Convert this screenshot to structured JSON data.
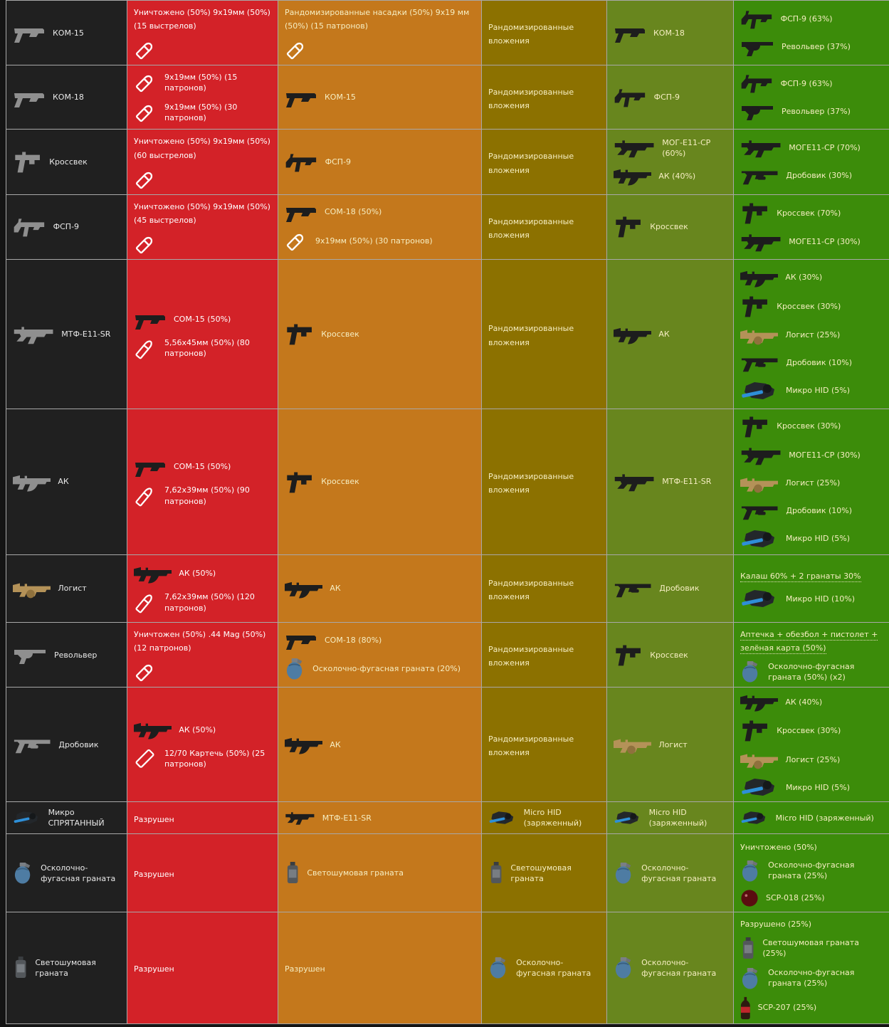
{
  "colors": {
    "item": "#202020",
    "red": "#d32228",
    "orange": "#c4781c",
    "olive": "#8c7100",
    "green1": "#68861e",
    "green2": "#3c8c0a",
    "grid": "#a8a8a8",
    "cream_text": "#f6eec2",
    "white_text": "#ffffff"
  },
  "rows": [
    {
      "cells": [
        {
          "bg": "item",
          "entries": [
            {
              "icon": "pistol-icon",
              "text": "КОМ-15"
            }
          ]
        },
        {
          "bg": "red",
          "entries": [
            {
              "text": "Уничтожено (50%) 9х19мм (50%) (15 выстрелов)"
            },
            {
              "icon": "pistol-ammo-icon"
            }
          ]
        },
        {
          "bg": "orange",
          "entries": [
            {
              "text": "Рандомизированные насадки (50%) 9х19 мм (50%) (15 патронов)"
            },
            {
              "icon": "pistol-ammo-icon"
            }
          ]
        },
        {
          "bg": "olive",
          "entries": [
            {
              "text": "Рандомизированные вложения"
            }
          ]
        },
        {
          "bg": "green1",
          "entries": [
            {
              "icon": "pistol-icon",
              "text": "КОМ-18",
              "link": true
            }
          ]
        },
        {
          "bg": "green2",
          "entries": [
            {
              "icon": "smg-icon",
              "text": "ФСП-9 (63%)",
              "link": true
            },
            {
              "icon": "revolver-icon",
              "text": "Револьвер (37%)",
              "link": true
            }
          ]
        }
      ]
    },
    {
      "cells": [
        {
          "bg": "item",
          "entries": [
            {
              "icon": "pistol-icon",
              "text": "КОМ-18"
            }
          ]
        },
        {
          "bg": "red",
          "entries": [
            {
              "icon": "pistol-ammo-icon",
              "text": "9х19мм (50%) (15 патронов)"
            },
            {
              "icon": "pistol-ammo-icon",
              "text": "9х19мм (50%) (30 патронов)"
            }
          ]
        },
        {
          "bg": "orange",
          "entries": [
            {
              "icon": "pistol-icon",
              "text": "КОМ-15",
              "link": true
            }
          ]
        },
        {
          "bg": "olive",
          "entries": [
            {
              "text": "Рандомизированные вложения"
            }
          ]
        },
        {
          "bg": "green1",
          "entries": [
            {
              "icon": "smg-icon",
              "text": "ФСП-9",
              "link": true
            }
          ]
        },
        {
          "bg": "green2",
          "entries": [
            {
              "icon": "smg-icon",
              "text": "ФСП-9 (63%)",
              "link": true
            },
            {
              "icon": "revolver-icon",
              "text": "Револьвер (37%)",
              "link": true
            }
          ]
        }
      ]
    },
    {
      "cells": [
        {
          "bg": "item",
          "entries": [
            {
              "icon": "vector-smg-icon",
              "text": "Кроссвек"
            }
          ]
        },
        {
          "bg": "red",
          "entries": [
            {
              "text": "Уничтожено (50%) 9х19мм (50%) (60 выстрелов)"
            },
            {
              "icon": "pistol-ammo-icon"
            }
          ]
        },
        {
          "bg": "orange",
          "entries": [
            {
              "icon": "smg-icon",
              "text": "ФСП-9",
              "link": true
            }
          ]
        },
        {
          "bg": "olive",
          "entries": [
            {
              "text": "Рандомизированные вложения"
            }
          ]
        },
        {
          "bg": "green1",
          "entries": [
            {
              "icon": "rifle-icon",
              "text": "МОГ-Е11-СР (60%)",
              "link": true
            },
            {
              "icon": "ak-icon",
              "text": "АК (40%)",
              "link": true
            }
          ]
        },
        {
          "bg": "green2",
          "entries": [
            {
              "icon": "rifle-icon",
              "text": "МОГЕ11-СР (70%)",
              "link": true
            },
            {
              "icon": "shotgun-icon",
              "text": "Дробовик (30%)",
              "link": true
            }
          ]
        }
      ]
    },
    {
      "cells": [
        {
          "bg": "item",
          "entries": [
            {
              "icon": "smg-icon",
              "text": "ФСП-9"
            }
          ]
        },
        {
          "bg": "red",
          "entries": [
            {
              "text": "Уничтожено (50%) 9х19мм (50%) (45 выстрелов)"
            },
            {
              "icon": "pistol-ammo-icon"
            }
          ]
        },
        {
          "bg": "orange",
          "entries": [
            {
              "icon": "pistol-icon",
              "text": "СОМ-18 (50%)",
              "link": true
            },
            {
              "icon": "pistol-ammo-icon",
              "text": "9х19мм (50%) (30 патронов)"
            }
          ]
        },
        {
          "bg": "olive",
          "entries": [
            {
              "text": "Рандомизированные вложения"
            }
          ]
        },
        {
          "bg": "green1",
          "entries": [
            {
              "icon": "vector-smg-icon",
              "text": "Кроссвек",
              "link": true
            }
          ]
        },
        {
          "bg": "green2",
          "entries": [
            {
              "icon": "vector-smg-icon",
              "text": "Кроссвек (70%)",
              "link": true
            },
            {
              "icon": "rifle-icon",
              "text": "МОГЕ11-СР (30%)",
              "link": true
            }
          ]
        }
      ]
    },
    {
      "cells": [
        {
          "bg": "item",
          "entries": [
            {
              "icon": "rifle-icon",
              "text": "МТФ-Е11-SR"
            }
          ]
        },
        {
          "bg": "red",
          "entries": [
            {
              "icon": "pistol-icon",
              "text": "СОМ-15 (50%)",
              "link": true
            },
            {
              "icon": "rifle-ammo-icon",
              "text": "5,56х45мм (50%) (80 патронов)"
            }
          ]
        },
        {
          "bg": "orange",
          "entries": [
            {
              "icon": "vector-smg-icon",
              "text": "Кроссвек",
              "link": true
            }
          ]
        },
        {
          "bg": "olive",
          "entries": [
            {
              "text": "Рандомизированные вложения"
            }
          ]
        },
        {
          "bg": "green1",
          "entries": [
            {
              "icon": "ak-icon",
              "text": "АК",
              "link": true
            }
          ]
        },
        {
          "bg": "green2",
          "entries": [
            {
              "icon": "ak-icon",
              "text": "АК (30%)",
              "link": true
            },
            {
              "icon": "vector-smg-icon",
              "text": "Кроссвек (30%)",
              "link": true
            },
            {
              "icon": "logicer-rifle-icon",
              "text": "Логист (25%)",
              "link": true
            },
            {
              "icon": "shotgun-icon",
              "text": "Дробовик (10%)",
              "link": true
            },
            {
              "icon": "micro-hid-icon",
              "text": "Микро HID (5%)",
              "link": true
            }
          ]
        }
      ]
    },
    {
      "cells": [
        {
          "bg": "item",
          "entries": [
            {
              "icon": "ak-icon",
              "text": "АК"
            }
          ]
        },
        {
          "bg": "red",
          "entries": [
            {
              "icon": "pistol-icon",
              "text": "СОМ-15 (50%)",
              "link": true
            },
            {
              "icon": "rifle-ammo-icon",
              "text": "7,62х39мм (50%) (90 патронов)"
            }
          ]
        },
        {
          "bg": "orange",
          "entries": [
            {
              "icon": "vector-smg-icon",
              "text": "Кроссвек",
              "link": true
            }
          ]
        },
        {
          "bg": "olive",
          "entries": [
            {
              "text": "Рандомизированные вложения"
            }
          ]
        },
        {
          "bg": "green1",
          "entries": [
            {
              "icon": "rifle-icon",
              "text": "МТФ-Е11-SR",
              "link": true
            }
          ]
        },
        {
          "bg": "green2",
          "entries": [
            {
              "icon": "vector-smg-icon",
              "text": "Кроссвек (30%)",
              "link": true
            },
            {
              "icon": "rifle-icon",
              "text": "МОГЕ11-СР (30%)",
              "link": true
            },
            {
              "icon": "logicer-rifle-icon",
              "text": "Логист (25%)",
              "link": true
            },
            {
              "icon": "shotgun-icon",
              "text": "Дробовик (10%)",
              "link": true
            },
            {
              "icon": "micro-hid-icon",
              "text": "Микро HID (5%)",
              "link": true
            }
          ]
        }
      ]
    },
    {
      "cells": [
        {
          "bg": "item",
          "entries": [
            {
              "icon": "logicer-rifle-icon",
              "text": "Логист"
            }
          ]
        },
        {
          "bg": "red",
          "entries": [
            {
              "icon": "ak-icon",
              "text": "АК (50%)",
              "link": true
            },
            {
              "icon": "rifle-ammo-icon",
              "text": "7,62х39мм (50%) (120 патронов)"
            }
          ]
        },
        {
          "bg": "orange",
          "entries": [
            {
              "icon": "ak-icon",
              "text": "АК",
              "link": true
            }
          ]
        },
        {
          "bg": "olive",
          "entries": [
            {
              "text": "Рандомизированные вложения"
            }
          ]
        },
        {
          "bg": "green1",
          "entries": [
            {
              "icon": "shotgun-icon",
              "text": "Дробовик",
              "link": true
            }
          ]
        },
        {
          "bg": "green2",
          "entries": [
            {
              "text": "Калаш 60% + 2 гранаты 30%",
              "underline": true
            },
            {
              "icon": "micro-hid-icon",
              "text": "Микро HID (10%)",
              "link": true
            }
          ]
        }
      ]
    },
    {
      "cells": [
        {
          "bg": "item",
          "entries": [
            {
              "icon": "revolver-icon",
              "text": "Револьвер"
            }
          ]
        },
        {
          "bg": "red",
          "entries": [
            {
              "text": "Уничтожен (50%) .44 Mag (50%) (12 патронов)"
            },
            {
              "icon": "pistol-ammo-icon"
            }
          ]
        },
        {
          "bg": "orange",
          "entries": [
            {
              "icon": "pistol-icon",
              "text": "СОМ-18 (80%)",
              "link": true
            },
            {
              "icon": "he-grenade-icon",
              "text": "Осколочно-фугасная граната (20%)",
              "link": true
            }
          ]
        },
        {
          "bg": "olive",
          "entries": [
            {
              "text": "Рандомизированные вложения"
            }
          ]
        },
        {
          "bg": "green1",
          "entries": [
            {
              "icon": "vector-smg-icon",
              "text": "Кроссвек",
              "link": true
            }
          ]
        },
        {
          "bg": "green2",
          "entries": [
            {
              "text": "Аптечка + обезбол + пистолет + зелёная карта (50%)",
              "underline": true
            },
            {
              "icon": "he-grenade-icon",
              "text": "Осколочно-фугасная граната (50%) (х2)",
              "link": true
            }
          ]
        }
      ]
    },
    {
      "cells": [
        {
          "bg": "item",
          "entries": [
            {
              "icon": "shotgun-icon",
              "text": "Дробовик"
            }
          ]
        },
        {
          "bg": "red",
          "entries": [
            {
              "icon": "ak-icon",
              "text": "АК (50%)",
              "link": true
            },
            {
              "icon": "shell-ammo-icon",
              "text": "12/70 Картечь (50%) (25 патронов)"
            }
          ]
        },
        {
          "bg": "orange",
          "entries": [
            {
              "icon": "ak-icon",
              "text": "АК",
              "link": true
            }
          ]
        },
        {
          "bg": "olive",
          "entries": [
            {
              "text": "Рандомизированные вложения"
            }
          ]
        },
        {
          "bg": "green1",
          "entries": [
            {
              "icon": "logicer-rifle-icon",
              "text": "Логист",
              "link": true
            }
          ]
        },
        {
          "bg": "green2",
          "entries": [
            {
              "icon": "ak-icon",
              "text": "АК (40%)",
              "link": true
            },
            {
              "icon": "vector-smg-icon",
              "text": "Кроссвек (30%)",
              "link": true
            },
            {
              "icon": "logicer-rifle-icon",
              "text": "Логист (25%)",
              "link": true
            },
            {
              "icon": "micro-hid-icon",
              "text": "Микро HID (5%)",
              "link": true
            }
          ]
        }
      ]
    },
    {
      "cells": [
        {
          "bg": "item",
          "entries": [
            {
              "icon": "micro-hid-icon",
              "text": "Микро СПРЯТАННЫЙ"
            }
          ]
        },
        {
          "bg": "red",
          "entries": [
            {
              "text": "Разрушен"
            }
          ]
        },
        {
          "bg": "orange",
          "entries": [
            {
              "icon": "rifle-icon",
              "text": "МТФ-Е11-SR",
              "link": true
            }
          ]
        },
        {
          "bg": "olive",
          "entries": [
            {
              "icon": "micro-hid-icon",
              "text": "Micro HID (заряженный)",
              "link": true
            }
          ]
        },
        {
          "bg": "green1",
          "entries": [
            {
              "icon": "micro-hid-icon",
              "text": "Micro HID (заряженный)",
              "link": true
            }
          ]
        },
        {
          "bg": "green2",
          "entries": [
            {
              "icon": "micro-hid-icon",
              "text": "Micro HID (заряженный)",
              "link": true
            }
          ]
        }
      ]
    },
    {
      "cells": [
        {
          "bg": "item",
          "entries": [
            {
              "icon": "he-grenade-icon",
              "text": "Осколочно-фугасная граната"
            }
          ]
        },
        {
          "bg": "red",
          "entries": [
            {
              "text": "Разрушен"
            }
          ]
        },
        {
          "bg": "orange",
          "entries": [
            {
              "icon": "flashbang-icon",
              "text": "Светошумовая граната",
              "link": true
            }
          ]
        },
        {
          "bg": "olive",
          "entries": [
            {
              "icon": "flashbang-icon",
              "text": "Светошумовая граната",
              "link": true
            }
          ]
        },
        {
          "bg": "green1",
          "entries": [
            {
              "icon": "he-grenade-icon",
              "text": "Осколочно-фугасная граната",
              "link": true
            }
          ]
        },
        {
          "bg": "green2",
          "entries": [
            {
              "text": "Уничтожено (50%)"
            },
            {
              "icon": "he-grenade-icon",
              "text": "Осколочно-фугасная граната (25%)",
              "link": true
            },
            {
              "icon": "scp018-ball-icon",
              "text": "SCP-018 (25%)",
              "link": true
            }
          ]
        }
      ]
    },
    {
      "cells": [
        {
          "bg": "item",
          "entries": [
            {
              "icon": "flashbang-icon",
              "text": "Светошумовая граната"
            }
          ]
        },
        {
          "bg": "red",
          "entries": [
            {
              "text": "Разрушен"
            }
          ]
        },
        {
          "bg": "orange",
          "entries": [
            {
              "text": "Разрушен"
            }
          ]
        },
        {
          "bg": "olive",
          "entries": [
            {
              "icon": "he-grenade-icon",
              "text": "Осколочно-фугасная граната",
              "link": true
            }
          ]
        },
        {
          "bg": "green1",
          "entries": [
            {
              "icon": "he-grenade-icon",
              "text": "Осколочно-фугасная граната",
              "link": true
            }
          ]
        },
        {
          "bg": "green2",
          "entries": [
            {
              "text": "Разрушено (25%)"
            },
            {
              "icon": "flashbang-icon",
              "text": "Светошумовая граната (25%)",
              "link": true
            },
            {
              "icon": "he-grenade-icon",
              "text": "Осколочно-фугасная граната (25%)",
              "link": true
            },
            {
              "icon": "scp207-bottle-icon",
              "text": "SCP-207 (25%)",
              "link": true
            }
          ]
        }
      ]
    }
  ]
}
